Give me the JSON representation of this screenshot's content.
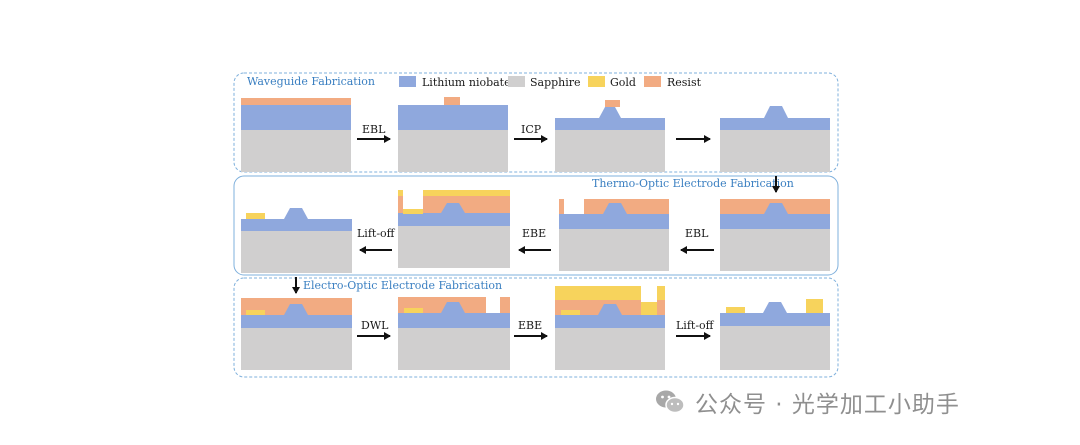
{
  "colors": {
    "lithium_niobate": "#8fa8dd",
    "sapphire": "#d0cfcf",
    "gold": "#f7d35c",
    "resist": "#f2ab82",
    "frame": "#7fb0dc",
    "section_text": "#3a7fc1"
  },
  "legend": [
    {
      "key": "lithium_niobate",
      "label": "Lithium niobate"
    },
    {
      "key": "sapphire",
      "label": "Sapphire"
    },
    {
      "key": "gold",
      "label": "Gold"
    },
    {
      "key": "resist",
      "label": "Resist"
    }
  ],
  "sections": [
    {
      "title": "Waveguide Fabrication",
      "steps": [
        "EBL",
        "ICP",
        ""
      ]
    },
    {
      "title": "Thermo-Optic Electrode Fabrication",
      "steps": [
        "EBL",
        "EBE",
        "Lift-off"
      ]
    },
    {
      "title": "Electro-Optic Electrode Fabrication",
      "steps": [
        "DWL",
        "EBE",
        "Lift-off"
      ]
    }
  ],
  "watermark": {
    "text": "公众号 · 光学加工小助手",
    "icon": "wechat-icon"
  }
}
